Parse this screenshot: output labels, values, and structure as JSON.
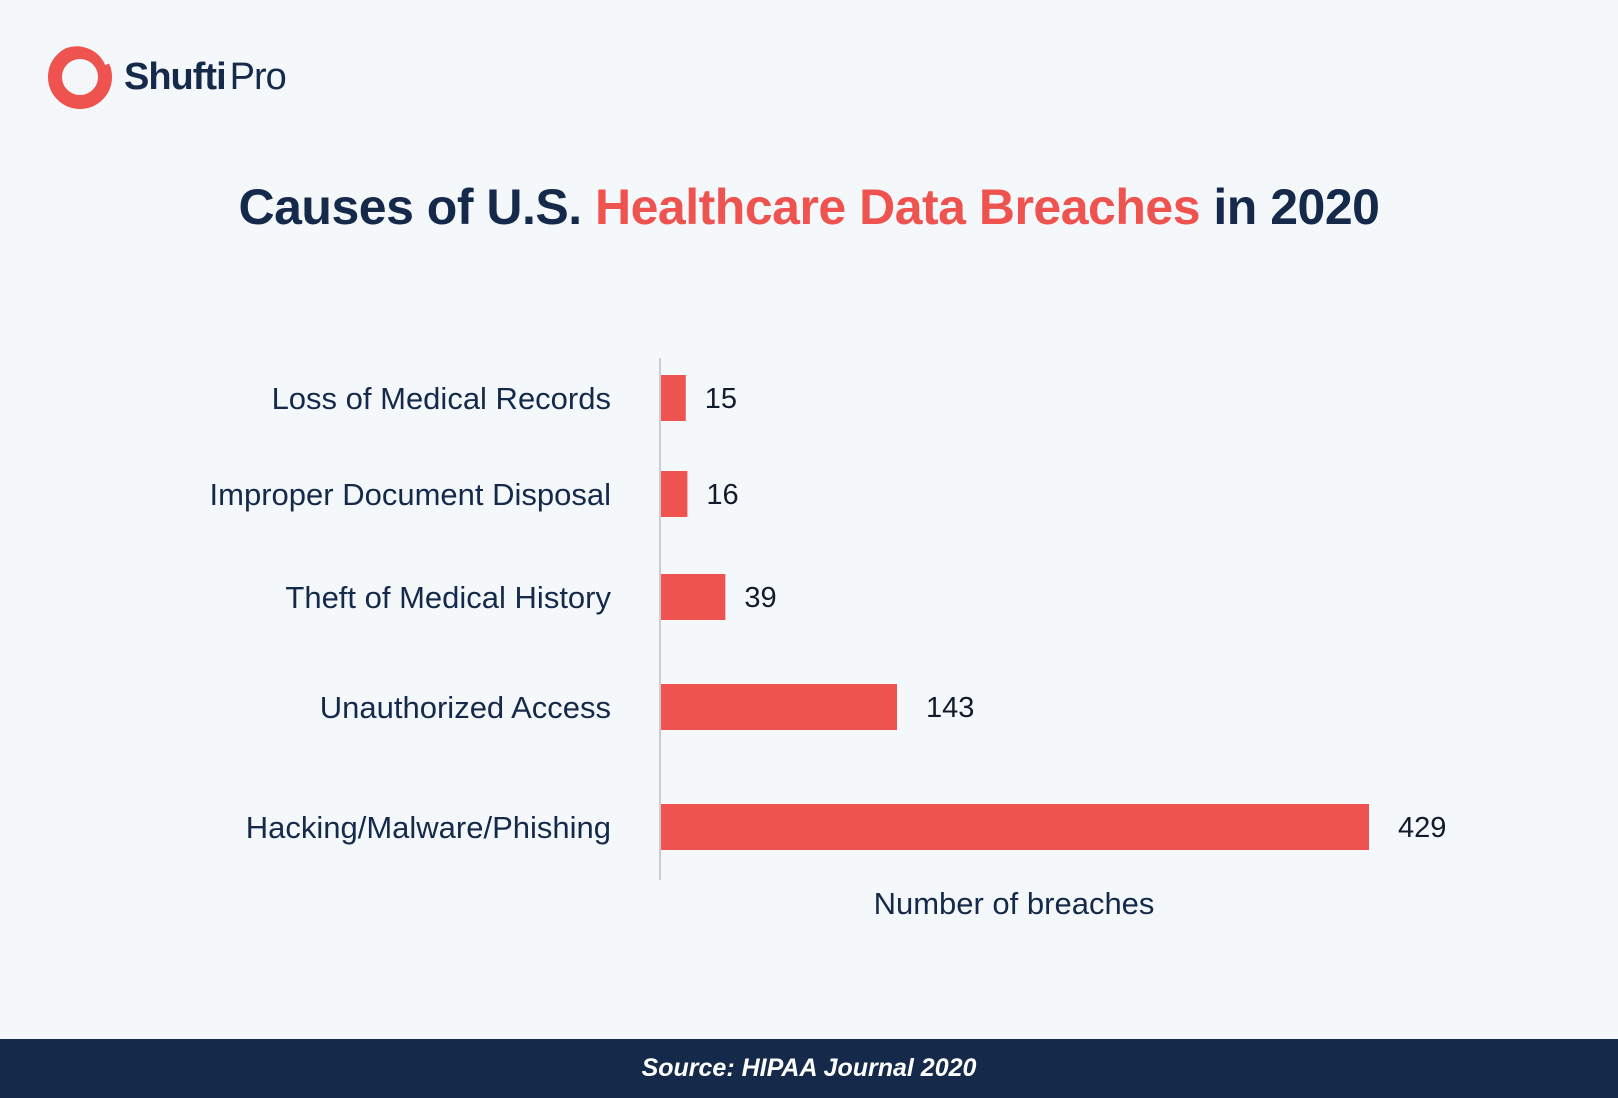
{
  "brand": {
    "name_bold": "Shufti",
    "name_light": "Pro",
    "logo_icon": "ring-logo-icon",
    "accent_color": "#ef5350",
    "dark_color": "#15294a"
  },
  "title": {
    "part1": "Causes of U.S. ",
    "highlight": "Healthcare Data Breaches",
    "part2": " in 2020"
  },
  "chart_data": {
    "type": "bar",
    "orientation": "horizontal",
    "categories": [
      "Loss of Medical Records",
      "Improper Document Disposal",
      "Theft of Medical History",
      "Unauthorized Access",
      "Hacking/Malware/Phishing"
    ],
    "values": [
      15,
      16,
      39,
      143,
      429
    ],
    "xlabel": "Number of breaches",
    "ylabel": "",
    "xlim": [
      0,
      429
    ],
    "grid": false,
    "data_labels": true,
    "bar_color": "#ef5350"
  },
  "footer": {
    "source": "Source: HIPAA Journal 2020"
  }
}
